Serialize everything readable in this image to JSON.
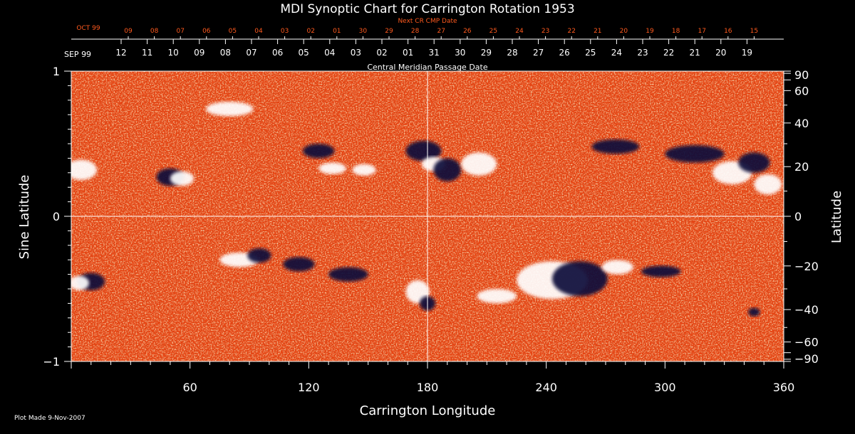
{
  "chart_data": {
    "type": "heatmap",
    "title": "MDI Synoptic Chart for Carrington Rotation 1953",
    "xlabel": "Carrington Longitude",
    "ylabel": "Sine Latitude",
    "ylabel_right": "Latitude",
    "xlim": [
      0,
      360
    ],
    "ylim": [
      -1,
      1
    ],
    "x_ticks": [
      60,
      120,
      180,
      240,
      300,
      360
    ],
    "y_ticks_left": [
      {
        "value": 1,
        "label": "1"
      },
      {
        "value": 0,
        "label": "0"
      },
      {
        "value": -1,
        "label": "−1"
      }
    ],
    "y_ticks_right": [
      90,
      60,
      40,
      20,
      0,
      -20,
      -40,
      -60,
      -90
    ],
    "y_tick_labels_right": [
      "90",
      "60",
      "40",
      "20",
      "0",
      "−20",
      "−40",
      "−60",
      "−90"
    ],
    "crosshair": {
      "longitude": 180,
      "sine_latitude": 0
    },
    "top_axis_next": {
      "label": "Next CR CMP Date",
      "month_label": "OCT 99",
      "days": [
        "09",
        "08",
        "07",
        "06",
        "05",
        "04",
        "03",
        "02",
        "01",
        "30",
        "29",
        "28",
        "27",
        "26",
        "25",
        "24",
        "23",
        "22",
        "21",
        "20",
        "19",
        "18",
        "17",
        "16",
        "15"
      ]
    },
    "top_axis_cmp": {
      "label": "Central Meridian Passage Date",
      "month_label": "SEP 99",
      "days": [
        "12",
        "11",
        "10",
        "09",
        "08",
        "07",
        "06",
        "05",
        "04",
        "03",
        "02",
        "01",
        "31",
        "30",
        "29",
        "28",
        "27",
        "26",
        "25",
        "24",
        "23",
        "22",
        "21",
        "20",
        "19"
      ]
    },
    "colors": {
      "background": "#000000",
      "field": "#e8400e",
      "positive": "#ffffff",
      "negative": "#0e0a3a",
      "accent_text": "#ff5a1e"
    },
    "regions": [
      {
        "polarity": "positive",
        "lon": 5,
        "sinlat": 0.32,
        "rx": 8,
        "ry": 0.07
      },
      {
        "polarity": "negative",
        "lon": 50,
        "sinlat": 0.27,
        "rx": 7,
        "ry": 0.06
      },
      {
        "polarity": "positive",
        "lon": 56,
        "sinlat": 0.26,
        "rx": 6,
        "ry": 0.05
      },
      {
        "polarity": "positive",
        "lon": 80,
        "sinlat": 0.74,
        "rx": 12,
        "ry": 0.05
      },
      {
        "polarity": "negative",
        "lon": 125,
        "sinlat": 0.45,
        "rx": 8,
        "ry": 0.05
      },
      {
        "polarity": "positive",
        "lon": 132,
        "sinlat": 0.33,
        "rx": 7,
        "ry": 0.04
      },
      {
        "polarity": "positive",
        "lon": 148,
        "sinlat": 0.32,
        "rx": 6,
        "ry": 0.04
      },
      {
        "polarity": "negative",
        "lon": 178,
        "sinlat": 0.45,
        "rx": 9,
        "ry": 0.07
      },
      {
        "polarity": "positive",
        "lon": 183,
        "sinlat": 0.36,
        "rx": 6,
        "ry": 0.05
      },
      {
        "polarity": "negative",
        "lon": 190,
        "sinlat": 0.32,
        "rx": 7,
        "ry": 0.08
      },
      {
        "polarity": "positive",
        "lon": 206,
        "sinlat": 0.36,
        "rx": 9,
        "ry": 0.08
      },
      {
        "polarity": "negative",
        "lon": 275,
        "sinlat": 0.48,
        "rx": 12,
        "ry": 0.05
      },
      {
        "polarity": "negative",
        "lon": 315,
        "sinlat": 0.43,
        "rx": 15,
        "ry": 0.06
      },
      {
        "polarity": "positive",
        "lon": 334,
        "sinlat": 0.3,
        "rx": 10,
        "ry": 0.08
      },
      {
        "polarity": "negative",
        "lon": 345,
        "sinlat": 0.37,
        "rx": 8,
        "ry": 0.07
      },
      {
        "polarity": "positive",
        "lon": 352,
        "sinlat": 0.22,
        "rx": 7,
        "ry": 0.07
      },
      {
        "polarity": "negative",
        "lon": 10,
        "sinlat": -0.45,
        "rx": 7,
        "ry": 0.06
      },
      {
        "polarity": "positive",
        "lon": 4,
        "sinlat": -0.46,
        "rx": 5,
        "ry": 0.05
      },
      {
        "polarity": "positive",
        "lon": 85,
        "sinlat": -0.3,
        "rx": 10,
        "ry": 0.05
      },
      {
        "polarity": "negative",
        "lon": 95,
        "sinlat": -0.27,
        "rx": 6,
        "ry": 0.05
      },
      {
        "polarity": "negative",
        "lon": 115,
        "sinlat": -0.33,
        "rx": 8,
        "ry": 0.05
      },
      {
        "polarity": "negative",
        "lon": 140,
        "sinlat": -0.4,
        "rx": 10,
        "ry": 0.05
      },
      {
        "polarity": "positive",
        "lon": 175,
        "sinlat": -0.52,
        "rx": 6,
        "ry": 0.08
      },
      {
        "polarity": "negative",
        "lon": 180,
        "sinlat": -0.6,
        "rx": 4,
        "ry": 0.05
      },
      {
        "polarity": "positive",
        "lon": 215,
        "sinlat": -0.55,
        "rx": 10,
        "ry": 0.05
      },
      {
        "polarity": "positive",
        "lon": 243,
        "sinlat": -0.44,
        "rx": 18,
        "ry": 0.13
      },
      {
        "polarity": "negative",
        "lon": 257,
        "sinlat": -0.43,
        "rx": 14,
        "ry": 0.12
      },
      {
        "polarity": "positive",
        "lon": 276,
        "sinlat": -0.35,
        "rx": 8,
        "ry": 0.05
      },
      {
        "polarity": "negative",
        "lon": 298,
        "sinlat": -0.38,
        "rx": 10,
        "ry": 0.04
      },
      {
        "polarity": "negative",
        "lon": 345,
        "sinlat": -0.66,
        "rx": 3,
        "ry": 0.03
      }
    ]
  },
  "footer": {
    "plot_made": "Plot Made  9-Nov-2007"
  }
}
